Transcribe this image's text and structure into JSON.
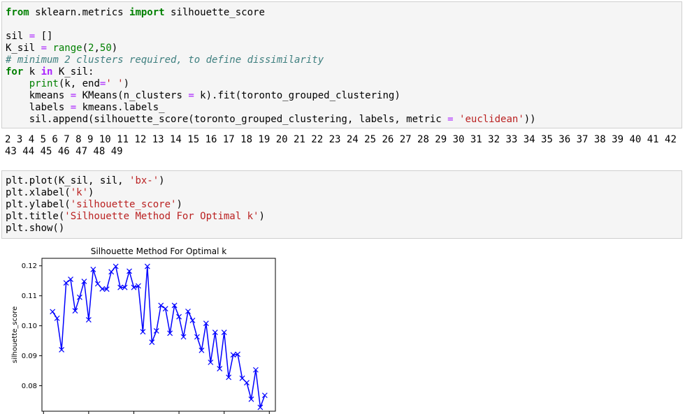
{
  "cell1": {
    "lines": [
      [
        {
          "t": "from",
          "c": "kw"
        },
        {
          "t": " sklearn.metrics ",
          "c": ""
        },
        {
          "t": "import",
          "c": "kw"
        },
        {
          "t": " silhouette_score",
          "c": ""
        }
      ],
      [
        {
          "t": "",
          "c": ""
        }
      ],
      [
        {
          "t": "sil ",
          "c": ""
        },
        {
          "t": "=",
          "c": "op"
        },
        {
          "t": " []",
          "c": ""
        }
      ],
      [
        {
          "t": "K_sil ",
          "c": ""
        },
        {
          "t": "=",
          "c": "op"
        },
        {
          "t": " ",
          "c": ""
        },
        {
          "t": "range",
          "c": "bi"
        },
        {
          "t": "(",
          "c": ""
        },
        {
          "t": "2",
          "c": "num"
        },
        {
          "t": ",",
          "c": ""
        },
        {
          "t": "50",
          "c": "num"
        },
        {
          "t": ")",
          "c": ""
        }
      ],
      [
        {
          "t": "# minimum 2 clusters required, to define dissimilarity",
          "c": "cm"
        }
      ],
      [
        {
          "t": "for",
          "c": "kw"
        },
        {
          "t": " k ",
          "c": ""
        },
        {
          "t": "in",
          "c": "opb"
        },
        {
          "t": " K_sil:",
          "c": ""
        }
      ],
      [
        {
          "t": "    ",
          "c": ""
        },
        {
          "t": "print",
          "c": "bi"
        },
        {
          "t": "(k, end",
          "c": ""
        },
        {
          "t": "=",
          "c": "op"
        },
        {
          "t": "' '",
          "c": "str"
        },
        {
          "t": ")",
          "c": ""
        }
      ],
      [
        {
          "t": "    kmeans ",
          "c": ""
        },
        {
          "t": "=",
          "c": "op"
        },
        {
          "t": " KMeans(n_clusters ",
          "c": ""
        },
        {
          "t": "=",
          "c": "op"
        },
        {
          "t": " k).fit(toronto_grouped_clustering)",
          "c": ""
        }
      ],
      [
        {
          "t": "    labels ",
          "c": ""
        },
        {
          "t": "=",
          "c": "op"
        },
        {
          "t": " kmeans.labels_",
          "c": ""
        }
      ],
      [
        {
          "t": "    sil.append(silhouette_score(toronto_grouped_clustering, labels, metric ",
          "c": ""
        },
        {
          "t": "=",
          "c": "op"
        },
        {
          "t": " ",
          "c": ""
        },
        {
          "t": "'euclidean'",
          "c": "str"
        },
        {
          "t": "))",
          "c": ""
        }
      ]
    ]
  },
  "output_text": "2 3 4 5 6 7 8 9 10 11 12 13 14 15 16 17 18 19 20 21 22 23 24 25 26 27 28 29 30 31 32 33 34 35 36 37 38 39 40 41 42\n43 44 45 46 47 48 49",
  "cell2": {
    "lines": [
      [
        {
          "t": "plt.plot(K_sil, sil, ",
          "c": ""
        },
        {
          "t": "'bx-'",
          "c": "str"
        },
        {
          "t": ")",
          "c": ""
        }
      ],
      [
        {
          "t": "plt.xlabel(",
          "c": ""
        },
        {
          "t": "'k'",
          "c": "str"
        },
        {
          "t": ")",
          "c": ""
        }
      ],
      [
        {
          "t": "plt.ylabel(",
          "c": ""
        },
        {
          "t": "'silhouette_score'",
          "c": "str"
        },
        {
          "t": ")",
          "c": ""
        }
      ],
      [
        {
          "t": "plt.title(",
          "c": ""
        },
        {
          "t": "'Silhouette Method For Optimal k'",
          "c": "str"
        },
        {
          "t": ")",
          "c": ""
        }
      ],
      [
        {
          "t": "plt.show()",
          "c": ""
        }
      ]
    ]
  },
  "chart_data": {
    "type": "line",
    "title": "Silhouette Method For Optimal k",
    "xlabel": "",
    "ylabel": "silhouette_score",
    "marker": "x",
    "color": "#0000ff",
    "x": [
      2,
      3,
      4,
      5,
      6,
      7,
      8,
      9,
      10,
      11,
      12,
      13,
      14,
      15,
      16,
      17,
      18,
      19,
      20,
      21,
      22,
      23,
      24,
      25,
      26,
      27,
      28,
      29,
      30,
      31,
      32,
      33,
      34,
      35,
      36,
      37,
      38,
      39,
      40,
      41,
      42,
      43,
      44,
      45,
      46,
      47,
      48,
      49
    ],
    "values": [
      0.1047,
      0.1025,
      0.092,
      0.1143,
      0.1155,
      0.105,
      0.1095,
      0.1148,
      0.102,
      0.1188,
      0.114,
      0.1123,
      0.1122,
      0.118,
      0.1198,
      0.1128,
      0.1128,
      0.1182,
      0.1128,
      0.1133,
      0.098,
      0.1198,
      0.0945,
      0.0983,
      0.1068,
      0.1057,
      0.0975,
      0.1068,
      0.103,
      0.0963,
      0.1048,
      0.1018,
      0.0963,
      0.0918,
      0.1008,
      0.0878,
      0.0978,
      0.0857,
      0.0978,
      0.0828,
      0.0903,
      0.0905,
      0.0825,
      0.081,
      0.0755,
      0.0853,
      0.0728,
      0.0768
    ],
    "yticks": [
      "0.08",
      "0.09",
      "0.10",
      "0.11",
      "0.12"
    ],
    "yticks_values": [
      0.08,
      0.09,
      0.1,
      0.11,
      0.12
    ],
    "xticks_values": [
      0,
      10,
      20,
      30,
      40,
      50
    ],
    "ylim": [
      0.0715,
      0.1225
    ],
    "xlim": [
      -0.35,
      51.35
    ]
  }
}
